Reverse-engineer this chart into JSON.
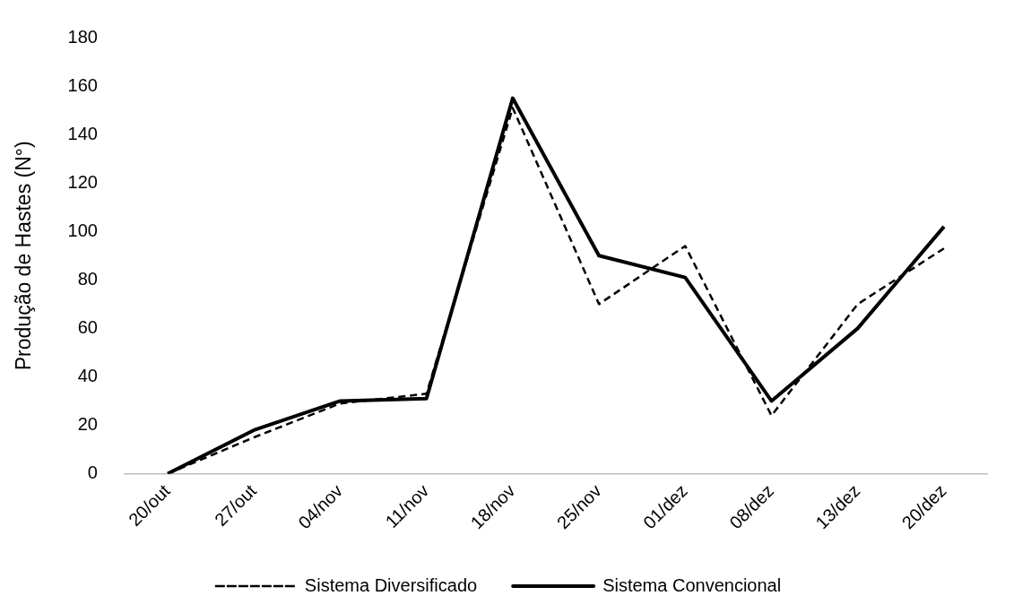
{
  "chart_data": {
    "type": "line",
    "ylabel": "Produção de Hastes (N°)",
    "categories": [
      "20/out",
      "27/out",
      "04/nov",
      "11/nov",
      "18/nov",
      "25/nov",
      "01/dez",
      "08/dez",
      "13/dez",
      "20/dez"
    ],
    "series": [
      {
        "name": "Sistema Diversificado",
        "color": "#000000",
        "line_style": "dashed",
        "values": [
          0,
          15,
          29,
          33,
          151,
          70,
          94,
          24,
          70,
          93
        ]
      },
      {
        "name": "Sistema Convencional",
        "color": "#000000",
        "line_style": "solid",
        "values": [
          0,
          18,
          30,
          31,
          155,
          90,
          81,
          30,
          60,
          102
        ]
      }
    ],
    "ylim": [
      0,
      180
    ],
    "yticks": [
      0,
      20,
      40,
      60,
      80,
      100,
      120,
      140,
      160,
      180
    ],
    "grid": false,
    "legend": "bottom",
    "marker": "none"
  }
}
